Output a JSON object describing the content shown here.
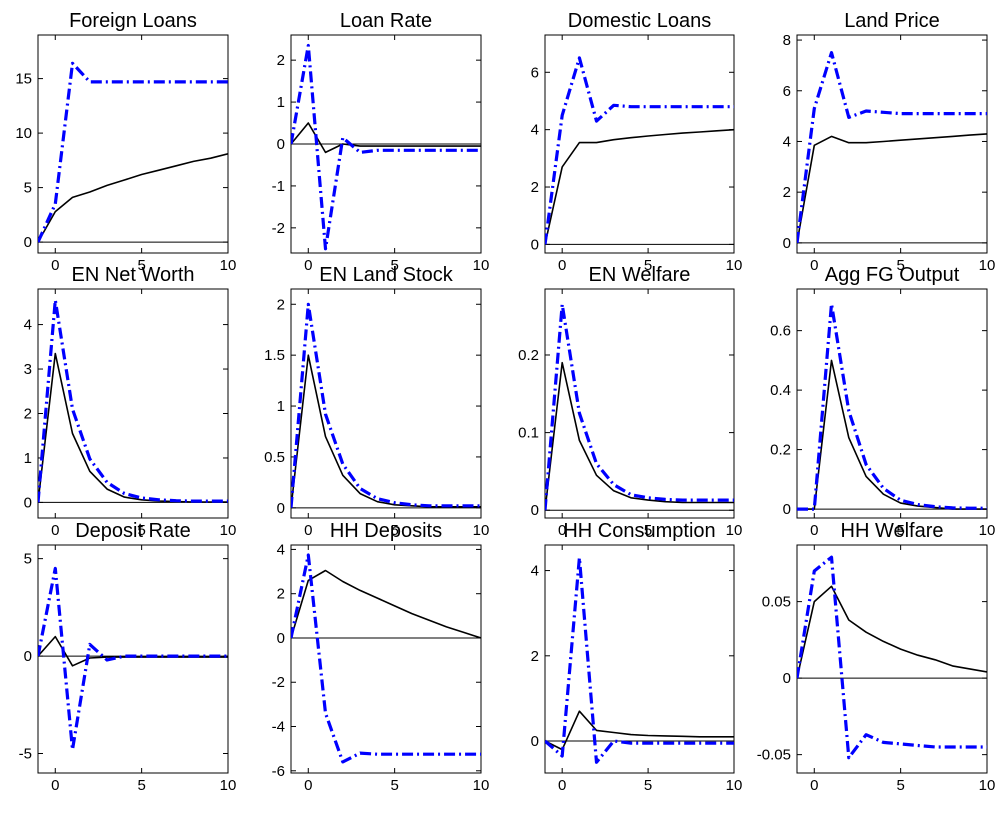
{
  "chart_data": [
    {
      "type": "line",
      "title": "Foreign Loans",
      "x": [
        -1,
        0,
        1,
        2,
        3,
        4,
        5,
        6,
        7,
        8,
        9,
        10
      ],
      "xlim": [
        -1,
        10
      ],
      "ylim": [
        -1,
        19
      ],
      "xticks": [
        0,
        5,
        10
      ],
      "yticks": [
        0,
        5,
        10,
        15
      ],
      "series": [
        {
          "style": "solid",
          "values": [
            0,
            2.8,
            4.1,
            4.6,
            5.2,
            5.7,
            6.2,
            6.6,
            7.0,
            7.4,
            7.7,
            8.1
          ]
        },
        {
          "style": "dashdot",
          "values": [
            0,
            3.5,
            16.4,
            14.7,
            14.7,
            14.7,
            14.7,
            14.7,
            14.7,
            14.7,
            14.7,
            14.7
          ]
        }
      ]
    },
    {
      "type": "line",
      "title": "Loan Rate",
      "x": [
        -1,
        0,
        1,
        2,
        3,
        4,
        5,
        6,
        7,
        8,
        9,
        10
      ],
      "xlim": [
        -1,
        10
      ],
      "ylim": [
        -2.6,
        2.6
      ],
      "xticks": [
        0,
        5,
        10
      ],
      "yticks": [
        -2,
        -1,
        0,
        1,
        2
      ],
      "series": [
        {
          "style": "solid",
          "values": [
            0,
            0.5,
            -0.2,
            0,
            -0.05,
            -0.05,
            -0.05,
            -0.05,
            -0.05,
            -0.05,
            -0.05,
            -0.05
          ]
        },
        {
          "style": "dashdot",
          "values": [
            0,
            2.35,
            -2.5,
            0.15,
            -0.2,
            -0.15,
            -0.15,
            -0.15,
            -0.15,
            -0.15,
            -0.15,
            -0.15
          ]
        }
      ]
    },
    {
      "type": "line",
      "title": "Domestic Loans",
      "x": [
        -1,
        0,
        1,
        2,
        3,
        4,
        5,
        6,
        7,
        8,
        9,
        10
      ],
      "xlim": [
        -1,
        10
      ],
      "ylim": [
        -0.3,
        7.3
      ],
      "xticks": [
        0,
        5,
        10
      ],
      "yticks": [
        0,
        2,
        4,
        6
      ],
      "series": [
        {
          "style": "solid",
          "values": [
            0,
            2.7,
            3.55,
            3.55,
            3.65,
            3.72,
            3.78,
            3.83,
            3.88,
            3.92,
            3.96,
            4.0
          ]
        },
        {
          "style": "dashdot",
          "values": [
            0,
            4.5,
            6.5,
            4.3,
            4.85,
            4.8,
            4.8,
            4.8,
            4.8,
            4.8,
            4.8,
            4.8
          ]
        }
      ]
    },
    {
      "type": "line",
      "title": "Land Price",
      "x": [
        -1,
        0,
        1,
        2,
        3,
        4,
        5,
        6,
        7,
        8,
        9,
        10
      ],
      "xlim": [
        -1,
        10
      ],
      "ylim": [
        -0.4,
        8.2
      ],
      "xticks": [
        0,
        5,
        10
      ],
      "yticks": [
        0,
        2,
        4,
        6,
        8
      ],
      "series": [
        {
          "style": "solid",
          "values": [
            0,
            3.85,
            4.2,
            3.95,
            3.95,
            4.0,
            4.05,
            4.1,
            4.15,
            4.2,
            4.25,
            4.3
          ]
        },
        {
          "style": "dashdot",
          "values": [
            0,
            5.3,
            7.5,
            4.95,
            5.2,
            5.15,
            5.1,
            5.1,
            5.1,
            5.1,
            5.1,
            5.1
          ]
        }
      ]
    },
    {
      "type": "line",
      "title": "EN Net Worth",
      "x": [
        -1,
        0,
        1,
        2,
        3,
        4,
        5,
        6,
        7,
        8,
        9,
        10
      ],
      "xlim": [
        -1,
        10
      ],
      "ylim": [
        -0.35,
        4.8
      ],
      "xticks": [
        0,
        5,
        10
      ],
      "yticks": [
        0,
        1,
        2,
        3,
        4
      ],
      "series": [
        {
          "style": "solid",
          "values": [
            0,
            3.35,
            1.55,
            0.7,
            0.3,
            0.12,
            0.06,
            0.03,
            0.02,
            0.01,
            0.01,
            0.01
          ]
        },
        {
          "style": "dashdot",
          "values": [
            0,
            4.55,
            2.1,
            0.98,
            0.45,
            0.2,
            0.1,
            0.06,
            0.04,
            0.03,
            0.03,
            0.03
          ]
        }
      ]
    },
    {
      "type": "line",
      "title": "EN Land Stock",
      "x": [
        -1,
        0,
        1,
        2,
        3,
        4,
        5,
        6,
        7,
        8,
        9,
        10
      ],
      "xlim": [
        -1,
        10
      ],
      "ylim": [
        -0.1,
        2.15
      ],
      "xticks": [
        0,
        5,
        10
      ],
      "yticks": [
        0,
        0.5,
        1,
        1.5,
        2
      ],
      "series": [
        {
          "style": "solid",
          "values": [
            0,
            1.5,
            0.7,
            0.32,
            0.14,
            0.06,
            0.03,
            0.02,
            0.01,
            0.01,
            0.01,
            0.01
          ]
        },
        {
          "style": "dashdot",
          "values": [
            0,
            2.0,
            0.92,
            0.43,
            0.19,
            0.09,
            0.05,
            0.03,
            0.02,
            0.02,
            0.02,
            0.02
          ]
        }
      ]
    },
    {
      "type": "line",
      "title": "EN Welfare",
      "x": [
        -1,
        0,
        1,
        2,
        3,
        4,
        5,
        6,
        7,
        8,
        9,
        10
      ],
      "xlim": [
        -1,
        10
      ],
      "ylim": [
        -0.01,
        0.285
      ],
      "xticks": [
        0,
        5,
        10
      ],
      "yticks": [
        0,
        0.1,
        0.2
      ],
      "series": [
        {
          "style": "solid",
          "values": [
            0,
            0.19,
            0.09,
            0.045,
            0.025,
            0.016,
            0.013,
            0.011,
            0.01,
            0.01,
            0.01,
            0.01
          ]
        },
        {
          "style": "dashdot",
          "values": [
            0,
            0.265,
            0.125,
            0.06,
            0.033,
            0.02,
            0.016,
            0.014,
            0.013,
            0.013,
            0.013,
            0.013
          ]
        }
      ]
    },
    {
      "type": "line",
      "title": "Agg FG Output",
      "x": [
        -1,
        0,
        1,
        2,
        3,
        4,
        5,
        6,
        7,
        8,
        9,
        10
      ],
      "xlim": [
        -1,
        10
      ],
      "ylim": [
        -0.03,
        0.74
      ],
      "xticks": [
        0,
        5,
        10
      ],
      "yticks": [
        0,
        0.2,
        0.4,
        0.6
      ],
      "series": [
        {
          "style": "solid",
          "values": [
            0,
            0,
            0.5,
            0.24,
            0.11,
            0.05,
            0.02,
            0.01,
            0.005,
            0,
            0,
            0
          ]
        },
        {
          "style": "dashdot",
          "values": [
            0,
            0,
            0.69,
            0.33,
            0.15,
            0.07,
            0.03,
            0.015,
            0.008,
            0.004,
            0.003,
            0.003
          ]
        }
      ]
    },
    {
      "type": "line",
      "title": "Deposit Rate",
      "x": [
        -1,
        0,
        1,
        2,
        3,
        4,
        5,
        6,
        7,
        8,
        9,
        10
      ],
      "xlim": [
        -1,
        10
      ],
      "ylim": [
        -6,
        5.7
      ],
      "xticks": [
        0,
        5,
        10
      ],
      "yticks": [
        -5,
        0,
        5
      ],
      "series": [
        {
          "style": "solid",
          "values": [
            0,
            1.0,
            -0.5,
            -0.1,
            -0.05,
            -0.05,
            -0.05,
            -0.05,
            -0.05,
            -0.05,
            -0.05,
            -0.05
          ]
        },
        {
          "style": "dashdot",
          "values": [
            0,
            4.5,
            -4.8,
            0.6,
            -0.2,
            0,
            0,
            0,
            0,
            0,
            0,
            0
          ]
        }
      ]
    },
    {
      "type": "line",
      "title": "HH Deposits",
      "x": [
        -1,
        0,
        1,
        2,
        3,
        4,
        5,
        6,
        7,
        8,
        9,
        10
      ],
      "xlim": [
        -1,
        10
      ],
      "ylim": [
        -6.1,
        4.2
      ],
      "xticks": [
        0,
        5,
        10
      ],
      "yticks": [
        -6,
        -4,
        -2,
        0,
        2,
        4
      ],
      "series": [
        {
          "style": "solid",
          "values": [
            0,
            2.6,
            3.05,
            2.55,
            2.15,
            1.8,
            1.45,
            1.1,
            0.8,
            0.5,
            0.25,
            0.0
          ]
        },
        {
          "style": "dashdot",
          "values": [
            0,
            3.75,
            -3.4,
            -5.6,
            -5.2,
            -5.25,
            -5.25,
            -5.25,
            -5.25,
            -5.25,
            -5.25,
            -5.25
          ]
        }
      ]
    },
    {
      "type": "line",
      "title": "HH Consumption",
      "x": [
        -1,
        0,
        1,
        2,
        3,
        4,
        5,
        6,
        7,
        8,
        9,
        10
      ],
      "xlim": [
        -1,
        10
      ],
      "ylim": [
        -0.75,
        4.6
      ],
      "xticks": [
        0,
        5,
        10
      ],
      "yticks": [
        0,
        2,
        4
      ],
      "series": [
        {
          "style": "solid",
          "values": [
            0,
            -0.2,
            0.7,
            0.25,
            0.2,
            0.15,
            0.13,
            0.12,
            0.11,
            0.1,
            0.1,
            0.1
          ]
        },
        {
          "style": "dashdot",
          "values": [
            0,
            -0.35,
            4.3,
            -0.5,
            0,
            -0.05,
            -0.05,
            -0.05,
            -0.05,
            -0.05,
            -0.05,
            -0.05
          ]
        }
      ]
    },
    {
      "type": "line",
      "title": "HH Welfare",
      "x": [
        -1,
        0,
        1,
        2,
        3,
        4,
        5,
        6,
        7,
        8,
        9,
        10
      ],
      "xlim": [
        -1,
        10
      ],
      "ylim": [
        -0.062,
        0.087
      ],
      "xticks": [
        0,
        5,
        10
      ],
      "yticks": [
        -0.05,
        0,
        0.05
      ],
      "series": [
        {
          "style": "solid",
          "values": [
            0,
            0.05,
            0.06,
            0.038,
            0.03,
            0.024,
            0.019,
            0.015,
            0.012,
            0.008,
            0.006,
            0.004
          ]
        },
        {
          "style": "dashdot",
          "values": [
            0,
            0.07,
            0.079,
            -0.052,
            -0.037,
            -0.042,
            -0.043,
            -0.044,
            -0.045,
            -0.045,
            -0.045,
            -0.045
          ]
        }
      ]
    }
  ],
  "colors": {
    "solid": "#000000",
    "dashdot": "#0000ff",
    "axes": "#000000"
  }
}
